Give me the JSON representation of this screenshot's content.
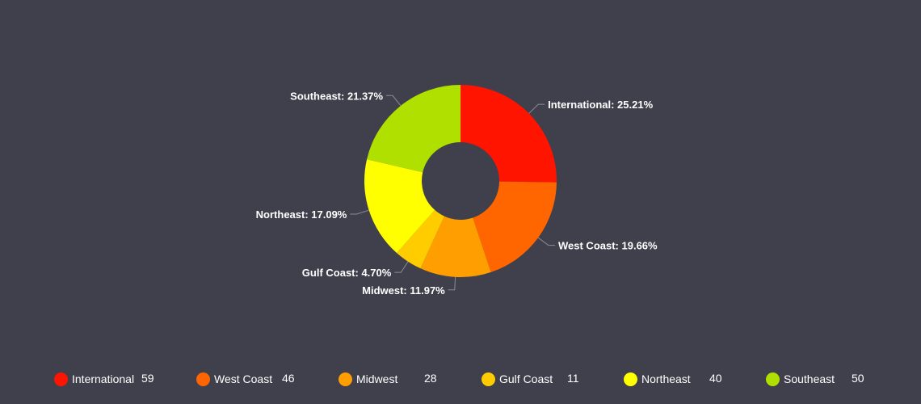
{
  "chart_data": {
    "type": "pie",
    "variant": "donut",
    "title": "",
    "series": [
      {
        "name": "International",
        "value": 59,
        "label": "International: 25.21%",
        "color": "#ff1400"
      },
      {
        "name": "West Coast",
        "value": 46,
        "label": "West Coast: 19.66%",
        "color": "#ff6600"
      },
      {
        "name": "Midwest",
        "value": 28,
        "label": "Midwest: 11.97%",
        "color": "#ff9e00"
      },
      {
        "name": "Gulf Coast",
        "value": 11,
        "label": "Gulf Coast: 4.70%",
        "color": "#ffcc00"
      },
      {
        "name": "Northeast",
        "value": 40,
        "label": "Northeast: 17.09%",
        "color": "#ffff00"
      },
      {
        "name": "Southeast",
        "value": 50,
        "label": "Southeast: 21.37%",
        "color": "#b0e000"
      }
    ],
    "legend_position": "bottom"
  },
  "colors": {
    "background": "#403f4c",
    "text": "#ffffff",
    "connector": "#8c8b95"
  }
}
